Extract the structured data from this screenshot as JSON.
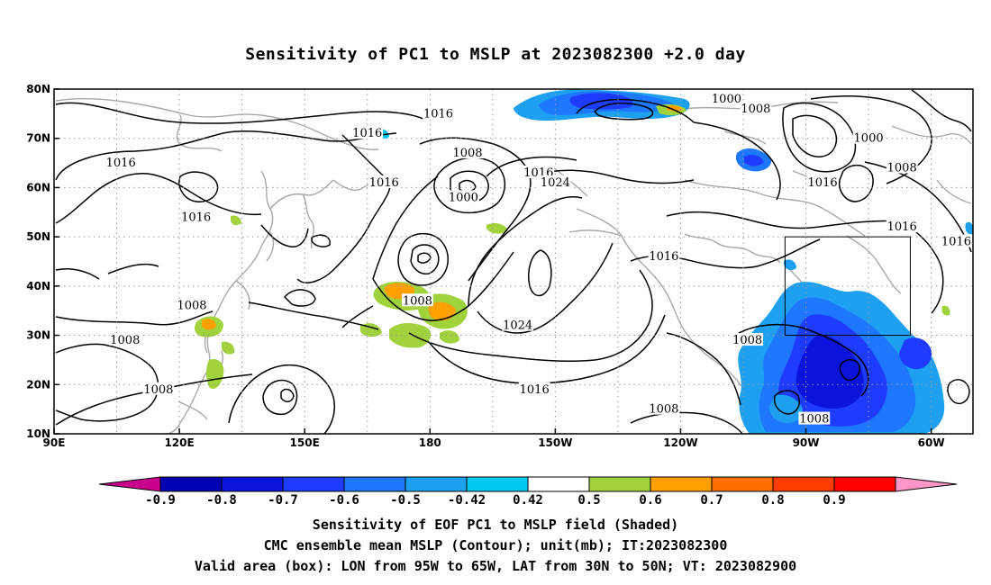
{
  "title": "Sensitivity of PC1 to MSLP at 2023082300 +2.0 day",
  "map": {
    "lon_labels": [
      "90E",
      "120E",
      "150E",
      "180",
      "150W",
      "120W",
      "90W",
      "60W"
    ],
    "lat_labels": [
      "80N",
      "70N",
      "60N",
      "50N",
      "40N",
      "30N",
      "20N",
      "10N"
    ],
    "lon_range": [
      90,
      310
    ],
    "lat_range": [
      10,
      80
    ],
    "grid": "dotted",
    "valid_box": {
      "lon": [
        265,
        295
      ],
      "lat": [
        30,
        50
      ]
    },
    "contour_labels": [
      {
        "text": "1016",
        "lon": 182,
        "lat": 75
      },
      {
        "text": "1016",
        "lon": 165,
        "lat": 71
      },
      {
        "text": "1016",
        "lon": 106,
        "lat": 65
      },
      {
        "text": "1016",
        "lon": 169,
        "lat": 61
      },
      {
        "text": "1016",
        "lon": 124,
        "lat": 54
      },
      {
        "text": "1008",
        "lon": 189,
        "lat": 67
      },
      {
        "text": "1000",
        "lon": 188,
        "lat": 58
      },
      {
        "text": "1016",
        "lon": 206,
        "lat": 63
      },
      {
        "text": "1024",
        "lon": 210,
        "lat": 61
      },
      {
        "text": "1000",
        "lon": 251,
        "lat": 78
      },
      {
        "text": "1008",
        "lon": 258,
        "lat": 76
      },
      {
        "text": "1000",
        "lon": 285,
        "lat": 70
      },
      {
        "text": "1008",
        "lon": 293,
        "lat": 64
      },
      {
        "text": "1016",
        "lon": 274,
        "lat": 61
      },
      {
        "text": "1016",
        "lon": 293,
        "lat": 52
      },
      {
        "text": "1016",
        "lon": 306,
        "lat": 49
      },
      {
        "text": "1016",
        "lon": 236,
        "lat": 46
      },
      {
        "text": "1008",
        "lon": 123,
        "lat": 36
      },
      {
        "text": "1008",
        "lon": 107,
        "lat": 29
      },
      {
        "text": "1008",
        "lon": 115,
        "lat": 19
      },
      {
        "text": "1008",
        "lon": 177,
        "lat": 37
      },
      {
        "text": "1024",
        "lon": 201,
        "lat": 32
      },
      {
        "text": "1016",
        "lon": 205,
        "lat": 19
      },
      {
        "text": "1008",
        "lon": 256,
        "lat": 29
      },
      {
        "text": "1008",
        "lon": 236,
        "lat": 15
      },
      {
        "text": "1008",
        "lon": 272,
        "lat": 13
      }
    ]
  },
  "colorbar": {
    "colors": [
      "#c8008c",
      "#0000b4",
      "#0a14dc",
      "#1e3cff",
      "#1e78ff",
      "#1ea0f0",
      "#00c8f0",
      "#ffffff",
      "#a0d23c",
      "#ffa000",
      "#ff6e00",
      "#ff3c00",
      "#ff0000",
      "#ff96c8"
    ],
    "labels": [
      "-0.9",
      "-0.8",
      "-0.7",
      "-0.6",
      "-0.5",
      "-0.42",
      "0.42",
      "0.5",
      "0.6",
      "0.7",
      "0.8",
      "0.9"
    ]
  },
  "captions": [
    "Sensitivity of EOF PC1 to MSLP field (Shaded)",
    "CMC ensemble mean MSLP (Contour); unit(mb); IT:2023082300",
    "Valid area (box): LON from 95W to 65W, LAT from 30N to 50N; VT: 2023082900"
  ]
}
